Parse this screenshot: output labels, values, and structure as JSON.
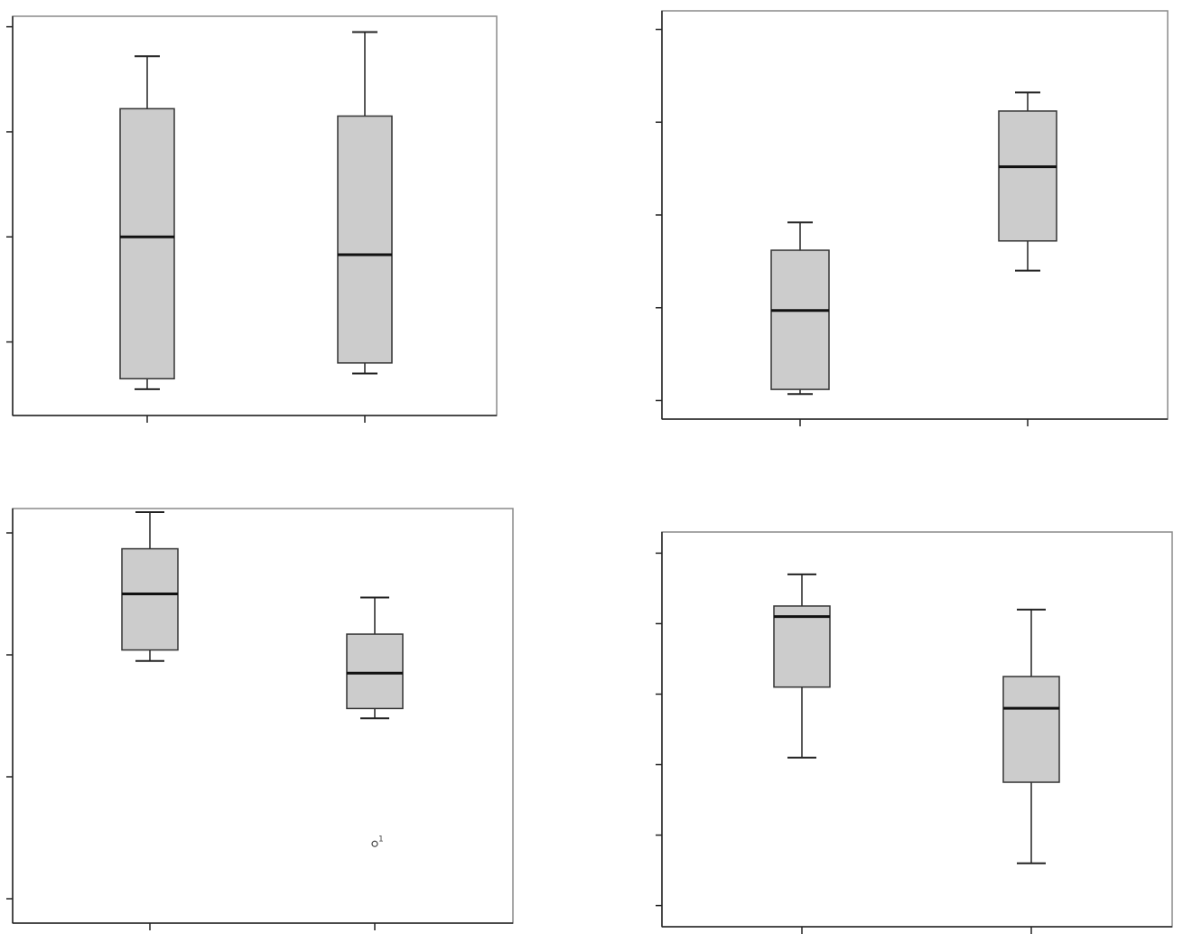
{
  "chart_data": [
    {
      "type": "boxplot",
      "panel": "top-left",
      "ylim": [
        0.3,
        4.1
      ],
      "yticks": [
        1,
        2,
        3,
        4
      ],
      "ytick_labels": [],
      "categories": [
        "",
        ""
      ],
      "boxes": [
        {
          "min": 0.55,
          "q1": 0.65,
          "median": 2.0,
          "q3": 3.22,
          "max": 3.72
        },
        {
          "min": 0.7,
          "q1": 0.8,
          "median": 1.83,
          "q3": 3.15,
          "max": 3.95
        }
      ],
      "outliers": [],
      "grid": false
    },
    {
      "type": "boxplot",
      "panel": "top-right",
      "ylim": [
        0.8,
        5.2
      ],
      "yticks": [
        1,
        2,
        3,
        4,
        5
      ],
      "ytick_labels": [],
      "categories": [
        "",
        ""
      ],
      "boxes": [
        {
          "min": 1.07,
          "q1": 1.12,
          "median": 1.97,
          "q3": 2.62,
          "max": 2.92
        },
        {
          "min": 2.4,
          "q1": 2.72,
          "median": 3.52,
          "q3": 4.12,
          "max": 4.32
        }
      ],
      "outliers": [],
      "grid": false
    },
    {
      "type": "boxplot",
      "panel": "bottom-left",
      "ylim": [
        0.8,
        4.2
      ],
      "yticks": [
        1,
        2,
        3,
        4
      ],
      "ytick_labels": [],
      "categories": [
        "",
        ""
      ],
      "boxes": [
        {
          "min": 2.95,
          "q1": 3.04,
          "median": 3.5,
          "q3": 3.87,
          "max": 4.17
        },
        {
          "min": 2.48,
          "q1": 2.56,
          "median": 2.85,
          "q3": 3.17,
          "max": 3.47
        }
      ],
      "outliers": [
        {
          "box": 1,
          "value": 1.45,
          "label": "1"
        }
      ],
      "grid": false
    },
    {
      "type": "boxplot",
      "panel": "bottom-right",
      "ylim": [
        0.7,
        6.3
      ],
      "yticks": [
        1,
        2,
        3,
        4,
        5,
        6
      ],
      "ytick_labels": [],
      "categories": [
        "",
        ""
      ],
      "boxes": [
        {
          "min": 3.1,
          "q1": 4.1,
          "median": 5.1,
          "q3": 5.25,
          "max": 5.7
        },
        {
          "min": 1.6,
          "q1": 2.75,
          "median": 3.8,
          "q3": 4.25,
          "max": 5.2
        }
      ],
      "outliers": [],
      "grid": false
    }
  ]
}
